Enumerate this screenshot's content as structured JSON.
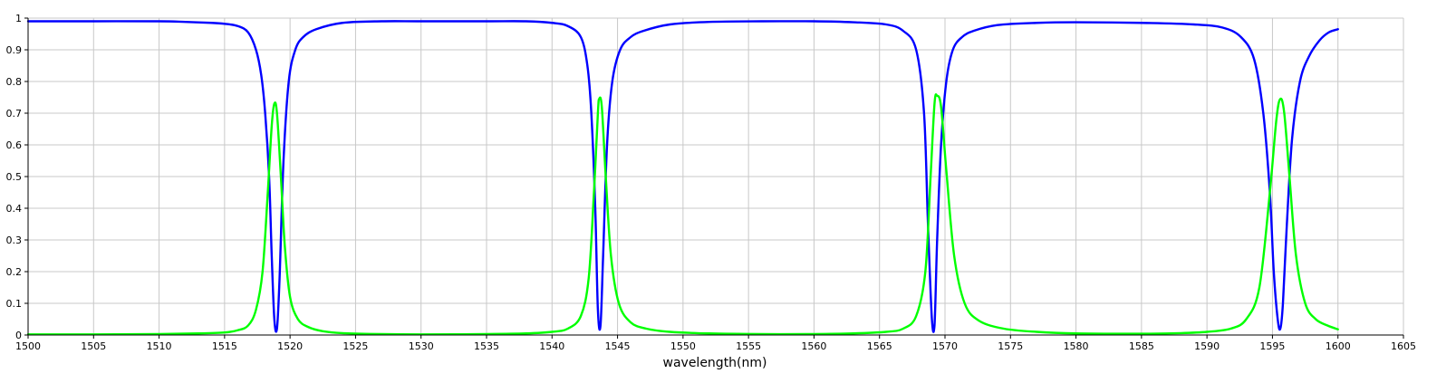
{
  "chart_data": {
    "type": "line",
    "xlabel": "wavelength(nm)",
    "ylabel": "",
    "xlim": [
      1500,
      1605
    ],
    "ylim": [
      0,
      1
    ],
    "x_ticks": [
      "1500",
      "1505",
      "1510",
      "1515",
      "1520",
      "1525",
      "1530",
      "1535",
      "1540",
      "1545",
      "1550",
      "1555",
      "1560",
      "1565",
      "1570",
      "1575",
      "1580",
      "1585",
      "1590",
      "1595",
      "1600",
      "1605"
    ],
    "y_ticks": [
      "0",
      "0.1",
      "0.2",
      "0.3",
      "0.4",
      "0.5",
      "0.6",
      "0.7",
      "0.8",
      "0.9",
      "1"
    ],
    "grid": true,
    "series": [
      {
        "color": "#0000ff",
        "x": [
          1500,
          1505,
          1510,
          1512,
          1514,
          1515,
          1516,
          1516.8,
          1517.4,
          1517.8,
          1518.1,
          1518.4,
          1518.6,
          1518.8,
          1519.0,
          1519.2,
          1519.5,
          1519.9,
          1520.4,
          1521.0,
          1522,
          1524,
          1527,
          1530,
          1535,
          1538,
          1540,
          1541.2,
          1542.2,
          1542.7,
          1543.0,
          1543.3,
          1543.5,
          1543.7,
          1543.9,
          1544.2,
          1544.6,
          1545.2,
          1546.0,
          1547,
          1549,
          1552,
          1556,
          1560,
          1563,
          1565.5,
          1566.8,
          1567.8,
          1568.4,
          1568.7,
          1569.0,
          1569.2,
          1569.4,
          1569.7,
          1570.1,
          1570.6,
          1571.3,
          1572.2,
          1574,
          1577,
          1580,
          1585,
          1589,
          1591.2,
          1592.6,
          1593.6,
          1594.3,
          1594.8,
          1595.1,
          1595.4,
          1595.6,
          1595.8,
          1596.1,
          1596.5,
          1597.1,
          1597.8,
          1598.6,
          1599.3,
          1600
        ],
        "values": [
          0.99,
          0.99,
          0.99,
          0.988,
          0.985,
          0.982,
          0.975,
          0.955,
          0.9,
          0.82,
          0.7,
          0.5,
          0.25,
          0.05,
          0.02,
          0.18,
          0.55,
          0.8,
          0.9,
          0.94,
          0.965,
          0.985,
          0.99,
          0.99,
          0.99,
          0.99,
          0.985,
          0.975,
          0.94,
          0.85,
          0.7,
          0.4,
          0.08,
          0.03,
          0.25,
          0.6,
          0.8,
          0.9,
          0.94,
          0.96,
          0.98,
          0.988,
          0.99,
          0.99,
          0.987,
          0.98,
          0.96,
          0.9,
          0.7,
          0.35,
          0.05,
          0.03,
          0.3,
          0.6,
          0.8,
          0.9,
          0.94,
          0.96,
          0.978,
          0.985,
          0.987,
          0.985,
          0.98,
          0.97,
          0.94,
          0.87,
          0.7,
          0.45,
          0.2,
          0.05,
          0.02,
          0.1,
          0.35,
          0.62,
          0.8,
          0.88,
          0.93,
          0.955,
          0.965
        ]
      },
      {
        "color": "#00ff00",
        "x": [
          1500,
          1505,
          1510,
          1513,
          1515,
          1516,
          1516.8,
          1517.4,
          1517.9,
          1518.3,
          1518.6,
          1518.8,
          1519.0,
          1519.3,
          1519.6,
          1520.0,
          1520.6,
          1521.4,
          1522.5,
          1524,
          1527,
          1530,
          1535,
          1538,
          1540,
          1541.2,
          1542.2,
          1542.8,
          1543.2,
          1543.5,
          1543.6,
          1543.8,
          1544.1,
          1544.5,
          1545.1,
          1546.0,
          1547.2,
          1549,
          1552,
          1556,
          1560,
          1563,
          1565.5,
          1566.8,
          1567.8,
          1568.5,
          1568.9,
          1569.2,
          1569.4,
          1569.7,
          1570.1,
          1570.7,
          1571.5,
          1572.6,
          1574.5,
          1577,
          1580,
          1585,
          1588,
          1590,
          1591.8,
          1593.0,
          1594.0,
          1594.8,
          1595.3,
          1595.6,
          1595.9,
          1596.3,
          1596.8,
          1597.5,
          1598.3,
          1599.2,
          1600
        ],
        "values": [
          0.002,
          0.002,
          0.003,
          0.005,
          0.008,
          0.015,
          0.03,
          0.08,
          0.2,
          0.45,
          0.66,
          0.73,
          0.7,
          0.5,
          0.28,
          0.12,
          0.05,
          0.025,
          0.012,
          0.006,
          0.003,
          0.002,
          0.003,
          0.005,
          0.01,
          0.02,
          0.06,
          0.18,
          0.45,
          0.7,
          0.745,
          0.72,
          0.5,
          0.25,
          0.1,
          0.04,
          0.02,
          0.01,
          0.005,
          0.003,
          0.003,
          0.005,
          0.01,
          0.02,
          0.06,
          0.2,
          0.5,
          0.73,
          0.755,
          0.72,
          0.52,
          0.25,
          0.1,
          0.045,
          0.02,
          0.01,
          0.005,
          0.004,
          0.006,
          0.01,
          0.02,
          0.05,
          0.15,
          0.45,
          0.68,
          0.745,
          0.7,
          0.5,
          0.25,
          0.1,
          0.05,
          0.03,
          0.018
        ]
      }
    ]
  }
}
